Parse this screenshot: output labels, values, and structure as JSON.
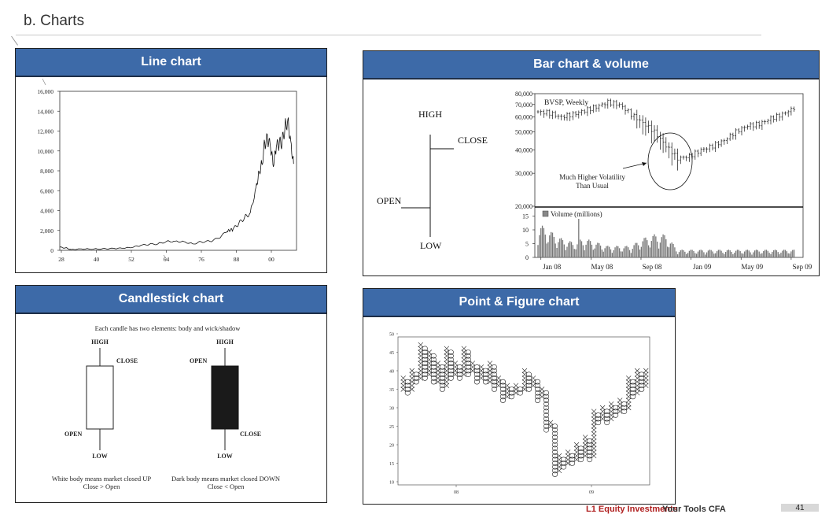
{
  "page": {
    "title": "b. Charts",
    "footer_left": "L1 Equity Investments",
    "footer_right": "Your Tools CFA",
    "page_number": "41"
  },
  "panels": {
    "line": {
      "header": "Line chart"
    },
    "bar": {
      "header": "Bar chart & volume"
    },
    "candle": {
      "header": "Candlestick chart"
    },
    "pnf": {
      "header": "Point & Figure chart"
    }
  },
  "chart_data": [
    {
      "type": "line",
      "x_tick_labels": [
        "28",
        "40",
        "52",
        "64",
        "76",
        "88",
        "00"
      ],
      "y_tick_labels": [
        "0",
        "2,000",
        "4,000",
        "6,000",
        "8,000",
        "10,000",
        "12,000",
        "14,000",
        "16,000"
      ],
      "ylim": [
        0,
        16000
      ],
      "xlim": [
        1928,
        2010
      ],
      "x": [
        1928,
        1930,
        1932,
        1935,
        1938,
        1941,
        1944,
        1947,
        1950,
        1953,
        1956,
        1959,
        1962,
        1965,
        1968,
        1971,
        1974,
        1977,
        1980,
        1983,
        1986,
        1987,
        1988,
        1990,
        1992,
        1994,
        1996,
        1997,
        1998,
        1999,
        2000,
        2001,
        2002,
        2003,
        2004,
        2005,
        2006,
        2007,
        2008,
        2009
      ],
      "y": [
        300,
        250,
        80,
        150,
        140,
        130,
        160,
        180,
        210,
        280,
        480,
        600,
        650,
        900,
        920,
        880,
        650,
        850,
        900,
        1200,
        1900,
        2000,
        2100,
        2700,
        3300,
        3800,
        6400,
        7900,
        8700,
        10800,
        11200,
        10300,
        8400,
        10400,
        10700,
        10900,
        12400,
        13200,
        11000,
        8700
      ]
    },
    {
      "type": "bar",
      "legend": [
        "BVSP, Weekly"
      ],
      "price_ticks": [
        "80,000",
        "70,000",
        "60,000",
        "50,000",
        "40,000",
        "30,000",
        "20,000"
      ],
      "volume_legend": "Volume (millions)",
      "volume_ticks": [
        "15",
        "10",
        "5",
        "0"
      ],
      "x_tick_labels": [
        "Jan 08",
        "May 08",
        "Sep 08",
        "Jan 09",
        "May 09",
        "Sep 09"
      ],
      "annotation": [
        "Much Higher Volatility",
        "Than Usual"
      ],
      "bar_labels": {
        "high": "HIGH",
        "close": "CLOSE",
        "open": "OPEN",
        "low": "LOW"
      },
      "x_weeks": [
        0,
        4,
        8,
        12,
        16,
        20,
        24,
        28,
        32,
        36,
        40,
        44,
        48,
        52,
        56,
        60,
        64,
        68,
        72,
        76,
        80,
        84,
        88
      ],
      "close": [
        64000,
        63000,
        60000,
        62000,
        65000,
        68000,
        72000,
        70000,
        62000,
        56000,
        50000,
        42000,
        36000,
        37000,
        40000,
        42000,
        45000,
        50000,
        54000,
        55000,
        59000,
        62000,
        67000
      ],
      "volume": [
        9,
        7,
        5,
        4,
        5,
        4,
        3,
        3,
        3,
        5,
        6,
        6,
        2,
        2,
        2,
        2,
        2,
        2,
        2,
        2,
        2,
        2,
        2
      ]
    },
    {
      "type": "candlestick",
      "caption_top": "Each candle has two elements: body and wick/shadow",
      "white": {
        "high": "HIGH",
        "close": "CLOSE",
        "open": "OPEN",
        "low": "LOW",
        "caption": [
          "White body means market closed UP",
          "Close > Open"
        ]
      },
      "dark": {
        "high": "HIGH",
        "open": "OPEN",
        "close": "CLOSE",
        "low": "LOW",
        "caption": [
          "Dark body means market closed DOWN",
          "Close < Open"
        ]
      }
    },
    {
      "type": "point-and-figure",
      "y_tick_labels": [
        "10",
        "15",
        "20",
        "25",
        "30",
        "35",
        "40",
        "45",
        "50"
      ],
      "ylim": [
        10,
        50
      ],
      "x_tick_labels": [
        "08",
        "09"
      ],
      "columns": [
        {
          "kind": "X",
          "low": 35,
          "high": 38
        },
        {
          "kind": "O",
          "low": 34,
          "high": 37
        },
        {
          "kind": "X",
          "low": 35,
          "high": 40
        },
        {
          "kind": "O",
          "low": 37,
          "high": 39
        },
        {
          "kind": "X",
          "low": 38,
          "high": 47
        },
        {
          "kind": "O",
          "low": 38,
          "high": 46
        },
        {
          "kind": "X",
          "low": 39,
          "high": 45
        },
        {
          "kind": "O",
          "low": 37,
          "high": 44
        },
        {
          "kind": "X",
          "low": 37,
          "high": 42
        },
        {
          "kind": "O",
          "low": 35,
          "high": 41
        },
        {
          "kind": "X",
          "low": 36,
          "high": 46
        },
        {
          "kind": "O",
          "low": 38,
          "high": 45
        },
        {
          "kind": "X",
          "low": 39,
          "high": 42
        },
        {
          "kind": "O",
          "low": 38,
          "high": 41
        },
        {
          "kind": "X",
          "low": 39,
          "high": 46
        },
        {
          "kind": "O",
          "low": 39,
          "high": 45
        },
        {
          "kind": "X",
          "low": 40,
          "high": 42
        },
        {
          "kind": "O",
          "low": 37,
          "high": 41
        },
        {
          "kind": "X",
          "low": 38,
          "high": 41
        },
        {
          "kind": "O",
          "low": 37,
          "high": 40
        },
        {
          "kind": "X",
          "low": 37,
          "high": 42
        },
        {
          "kind": "O",
          "low": 35,
          "high": 41
        },
        {
          "kind": "X",
          "low": 36,
          "high": 38
        },
        {
          "kind": "O",
          "low": 32,
          "high": 37
        },
        {
          "kind": "X",
          "low": 33,
          "high": 36
        },
        {
          "kind": "O",
          "low": 33,
          "high": 35
        },
        {
          "kind": "X",
          "low": 34,
          "high": 36
        },
        {
          "kind": "O",
          "low": 34,
          "high": 35
        },
        {
          "kind": "X",
          "low": 35,
          "high": 40
        },
        {
          "kind": "O",
          "low": 35,
          "high": 39
        },
        {
          "kind": "X",
          "low": 36,
          "high": 38
        },
        {
          "kind": "O",
          "low": 32,
          "high": 37
        },
        {
          "kind": "X",
          "low": 33,
          "high": 35
        },
        {
          "kind": "O",
          "low": 24,
          "high": 34
        },
        {
          "kind": "X",
          "low": 25,
          "high": 26
        },
        {
          "kind": "O",
          "low": 12,
          "high": 25
        },
        {
          "kind": "X",
          "low": 13,
          "high": 17
        },
        {
          "kind": "O",
          "low": 14,
          "high": 16
        },
        {
          "kind": "X",
          "low": 15,
          "high": 18
        },
        {
          "kind": "O",
          "low": 15,
          "high": 17
        },
        {
          "kind": "X",
          "low": 16,
          "high": 20
        },
        {
          "kind": "O",
          "low": 16,
          "high": 19
        },
        {
          "kind": "X",
          "low": 17,
          "high": 22
        },
        {
          "kind": "O",
          "low": 16,
          "high": 21
        },
        {
          "kind": "X",
          "low": 17,
          "high": 29
        },
        {
          "kind": "O",
          "low": 26,
          "high": 28
        },
        {
          "kind": "X",
          "low": 27,
          "high": 30
        },
        {
          "kind": "O",
          "low": 26,
          "high": 29
        },
        {
          "kind": "X",
          "low": 27,
          "high": 31
        },
        {
          "kind": "O",
          "low": 28,
          "high": 30
        },
        {
          "kind": "X",
          "low": 29,
          "high": 32
        },
        {
          "kind": "O",
          "low": 29,
          "high": 31
        },
        {
          "kind": "X",
          "low": 30,
          "high": 38
        },
        {
          "kind": "O",
          "low": 33,
          "high": 37
        },
        {
          "kind": "X",
          "low": 34,
          "high": 40
        },
        {
          "kind": "O",
          "low": 35,
          "high": 39
        },
        {
          "kind": "X",
          "low": 36,
          "high": 40
        }
      ]
    }
  ]
}
